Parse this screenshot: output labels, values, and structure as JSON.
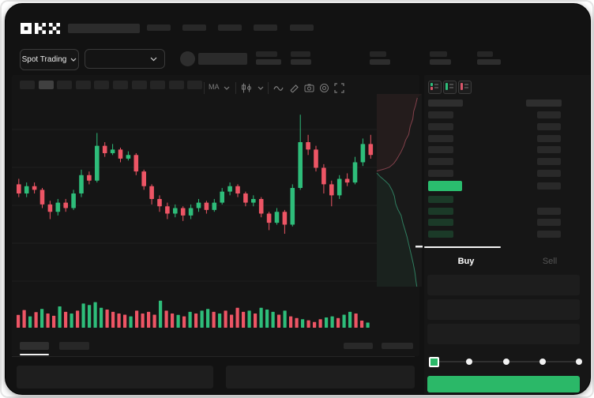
{
  "app": {
    "logo_text": "OKX"
  },
  "colors": {
    "background": "#121212",
    "panel": "#161616",
    "green": "#2ebd7a",
    "red": "#ed5565",
    "last_price_green": "#2abd6e",
    "button_green": "#2bb868",
    "bid_row_green": "#1b3a28",
    "depth_ask_line": "#83414b",
    "depth_bid_line": "#2f7d5f"
  },
  "header": {
    "market_type_selector": {
      "label": "Spot Trading"
    },
    "pair_selector": {
      "value": ""
    }
  },
  "toolbar": {
    "ma_indicator_label": "MA",
    "timeframe_button_count": 10,
    "active_timeframe_index": 1
  },
  "order_book": {
    "layout_toggles": [
      "layout-split",
      "layout-bids-only",
      "layout-asks-only"
    ],
    "ask_row_count": 6,
    "bid_row_count": 4
  },
  "trade_panel": {
    "tabs": {
      "buy": "Buy",
      "sell": "Sell"
    },
    "active_tab": "Buy",
    "input_box_count": 3,
    "slider": {
      "stop_count": 5,
      "active_stop_index": 0
    }
  },
  "chart_data": [
    {
      "type": "candlestick",
      "title": "",
      "xlabel": "",
      "ylabel": "",
      "axis_labels_visible": false,
      "grid": true,
      "ylim": [
        0,
        100
      ],
      "note": "values normalized 0-100, no price/time labels are rendered in the screenshot",
      "candles": [
        [
          55,
          58,
          48,
          50
        ],
        [
          50,
          56,
          48,
          54
        ],
        [
          54,
          56,
          50,
          52
        ],
        [
          52,
          53,
          42,
          44
        ],
        [
          44,
          46,
          36,
          40
        ],
        [
          40,
          47,
          38,
          45
        ],
        [
          45,
          47,
          40,
          42
        ],
        [
          42,
          52,
          41,
          50
        ],
        [
          50,
          63,
          48,
          60
        ],
        [
          60,
          62,
          55,
          57
        ],
        [
          57,
          83,
          56,
          76
        ],
        [
          76,
          78,
          70,
          72
        ],
        [
          72,
          77,
          71,
          74
        ],
        [
          74,
          75,
          67,
          69
        ],
        [
          69,
          73,
          68,
          71
        ],
        [
          71,
          72,
          60,
          62
        ],
        [
          62,
          63,
          52,
          54
        ],
        [
          54,
          55,
          44,
          47
        ],
        [
          47,
          49,
          40,
          43
        ],
        [
          43,
          45,
          36,
          39
        ],
        [
          39,
          44,
          37,
          42
        ],
        [
          42,
          43,
          35,
          38
        ],
        [
          38,
          44,
          36,
          42
        ],
        [
          42,
          47,
          40,
          45
        ],
        [
          45,
          46,
          39,
          41
        ],
        [
          41,
          47,
          40,
          45
        ],
        [
          45,
          53,
          44,
          51
        ],
        [
          51,
          56,
          49,
          54
        ],
        [
          54,
          55,
          48,
          50
        ],
        [
          50,
          51,
          43,
          45
        ],
        [
          45,
          49,
          43,
          47
        ],
        [
          47,
          48,
          37,
          39
        ],
        [
          39,
          40,
          30,
          34
        ],
        [
          34,
          42,
          33,
          40
        ],
        [
          40,
          41,
          28,
          33
        ],
        [
          33,
          55,
          32,
          53
        ],
        [
          53,
          93,
          52,
          78
        ],
        [
          78,
          82,
          71,
          74
        ],
        [
          74,
          76,
          62,
          64
        ],
        [
          64,
          66,
          50,
          55
        ],
        [
          55,
          57,
          43,
          49
        ],
        [
          49,
          60,
          47,
          58
        ],
        [
          58,
          61,
          54,
          56
        ],
        [
          56,
          70,
          55,
          67
        ],
        [
          67,
          80,
          65,
          77
        ],
        [
          77,
          82,
          69,
          71
        ]
      ]
    },
    {
      "type": "bar",
      "name": "volume",
      "ylim": [
        0,
        100
      ],
      "values": [
        45,
        62,
        40,
        55,
        66,
        50,
        42,
        75,
        56,
        50,
        60,
        85,
        80,
        90,
        70,
        64,
        56,
        50,
        46,
        40,
        60,
        50,
        56,
        46,
        95,
        60,
        50,
        45,
        40,
        56,
        50,
        60,
        66,
        56,
        50,
        60,
        46,
        70,
        56,
        60,
        50,
        70,
        64,
        56,
        46,
        60,
        40,
        34,
        30,
        26,
        20,
        30,
        36,
        40,
        34,
        46,
        56,
        50,
        25,
        18
      ],
      "colors": [
        "r",
        "r",
        "g",
        "r",
        "g",
        "r",
        "r",
        "g",
        "r",
        "g",
        "r",
        "g",
        "g",
        "g",
        "g",
        "r",
        "r",
        "r",
        "r",
        "g",
        "r",
        "r",
        "r",
        "r",
        "g",
        "r",
        "r",
        "g",
        "r",
        "g",
        "r",
        "g",
        "g",
        "r",
        "g",
        "r",
        "r",
        "r",
        "r",
        "g",
        "r",
        "g",
        "g",
        "g",
        "r",
        "g",
        "r",
        "r",
        "g",
        "r",
        "r",
        "r",
        "g",
        "g",
        "r",
        "g",
        "g",
        "r",
        "r",
        "g"
      ]
    },
    {
      "type": "area",
      "name": "order-book-depth-vertical",
      "asks": [
        [
          90,
          2
        ],
        [
          86,
          6
        ],
        [
          82,
          9
        ],
        [
          80,
          13
        ],
        [
          74,
          17
        ],
        [
          71,
          21
        ],
        [
          64,
          24
        ],
        [
          60,
          27
        ],
        [
          54,
          30
        ],
        [
          49,
          32
        ],
        [
          44,
          34
        ],
        [
          38,
          36
        ],
        [
          28,
          38
        ],
        [
          16,
          39
        ],
        [
          0,
          40
        ]
      ],
      "bids": [
        [
          0,
          41
        ],
        [
          8,
          43
        ],
        [
          18,
          45
        ],
        [
          27,
          47
        ],
        [
          34,
          50
        ],
        [
          39,
          53
        ],
        [
          42,
          57
        ],
        [
          47,
          60
        ],
        [
          54,
          63
        ],
        [
          58,
          67
        ],
        [
          62,
          70
        ],
        [
          67,
          74
        ],
        [
          71,
          78
        ],
        [
          76,
          83
        ],
        [
          81,
          88
        ],
        [
          85,
          93
        ],
        [
          87,
          97
        ],
        [
          89,
          100
        ]
      ]
    }
  ]
}
